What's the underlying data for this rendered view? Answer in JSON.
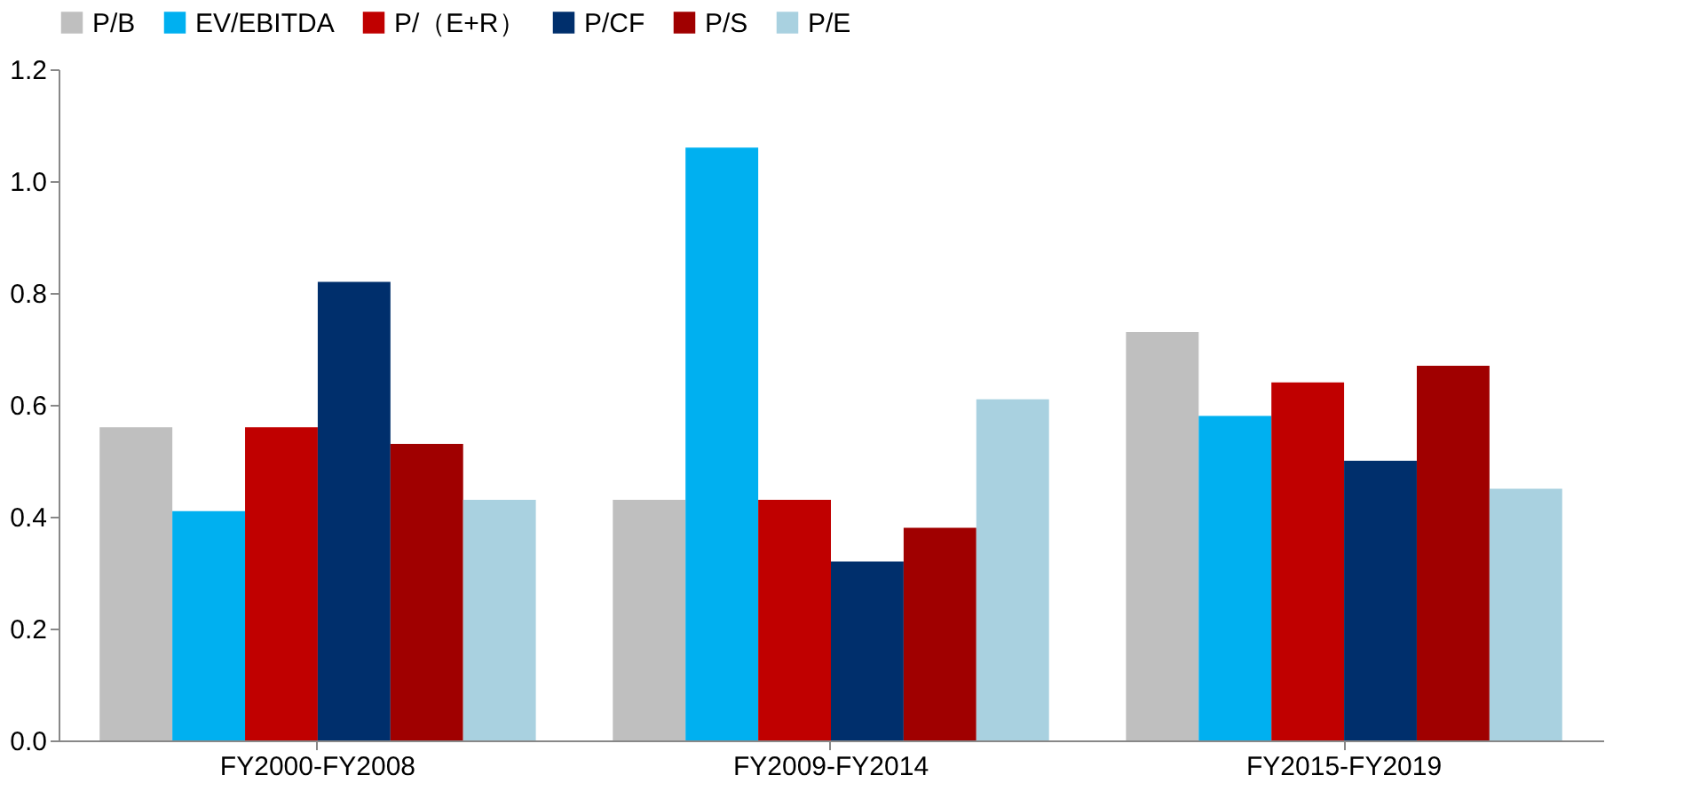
{
  "chart_data": {
    "type": "bar",
    "categories": [
      "FY2000-FY2008",
      "FY2009-FY2014",
      "FY2015-FY2019"
    ],
    "series": [
      {
        "name": "P/B",
        "color": "#bfbfbf",
        "values": [
          0.56,
          0.43,
          0.73
        ]
      },
      {
        "name": "EV/EBITDA",
        "color": "#00b0f0",
        "values": [
          0.41,
          1.06,
          0.58
        ]
      },
      {
        "name": "P/（E+R）",
        "color": "#c00000",
        "values": [
          0.56,
          0.43,
          0.64
        ]
      },
      {
        "name": "P/CF",
        "color": "#002f6c",
        "values": [
          0.82,
          0.32,
          0.5
        ]
      },
      {
        "name": "P/S",
        "color": "#a00000",
        "values": [
          0.53,
          0.38,
          0.67
        ]
      },
      {
        "name": "P/E",
        "color": "#a9d1e0",
        "values": [
          0.43,
          0.61,
          0.45
        ]
      }
    ],
    "ylim": [
      0,
      1.2
    ],
    "yticks": [
      {
        "value": 0,
        "label": "0.0"
      },
      {
        "value": 0.2,
        "label": "0.2"
      },
      {
        "value": 0.4,
        "label": "0.4"
      },
      {
        "value": 0.6,
        "label": "0.6"
      },
      {
        "value": 0.8,
        "label": "0.8"
      },
      {
        "value": 1.0,
        "label": "1.0"
      },
      {
        "value": 1.2,
        "label": "1.2"
      }
    ],
    "grid": false,
    "legend": "top"
  }
}
